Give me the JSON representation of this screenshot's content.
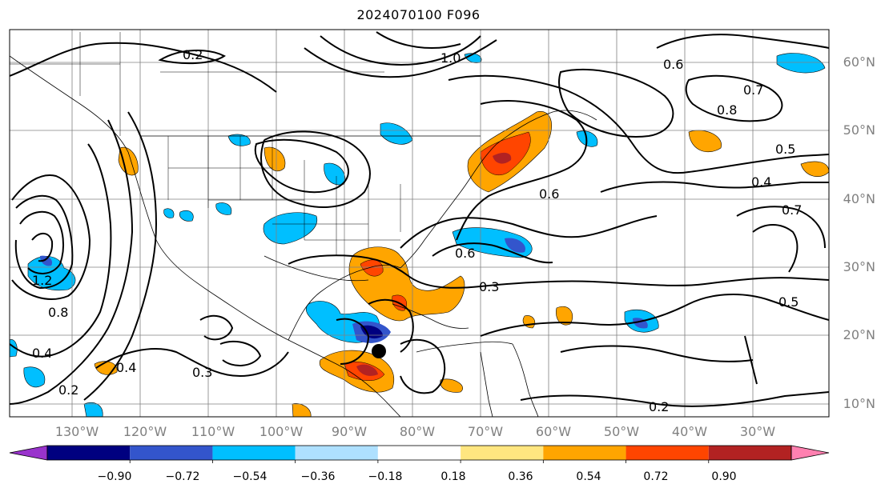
{
  "title": "2024070100 F096",
  "lat_labels": [
    "60°N",
    "50°N",
    "40°N",
    "30°N",
    "20°N",
    "10°N"
  ],
  "lon_labels": [
    "130°W",
    "120°W",
    "110°W",
    "100°W",
    "90°W",
    "80°W",
    "70°W",
    "60°W",
    "50°W",
    "40°W",
    "30°W"
  ],
  "colorbar": {
    "ticks": [
      "−0.90",
      "−0.72",
      "−0.54",
      "−0.36",
      "−0.18",
      "0.18",
      "0.36",
      "0.54",
      "0.72",
      "0.90"
    ],
    "colors": [
      "#9933cc",
      "#000080",
      "#3355cc",
      "#00bfff",
      "#aee0ff",
      "#ffffff",
      "#ffe680",
      "#ffa500",
      "#ff4500",
      "#b22222",
      "#ff80b0"
    ]
  },
  "contour_labels": [
    "0.2",
    "0.2",
    "0.3",
    "0.3",
    "0.4",
    "0.4",
    "0.5",
    "0.5",
    "0.6",
    "0.6",
    "0.7",
    "0.8",
    "1.0",
    "1.2",
    "0.2",
    "0.4",
    "0.6",
    "0.7",
    "0.8"
  ],
  "legend_colors": {
    "cold": "#00bfff",
    "warm": "#ffa500",
    "hot": "#ff4500",
    "deep": "#000080"
  }
}
